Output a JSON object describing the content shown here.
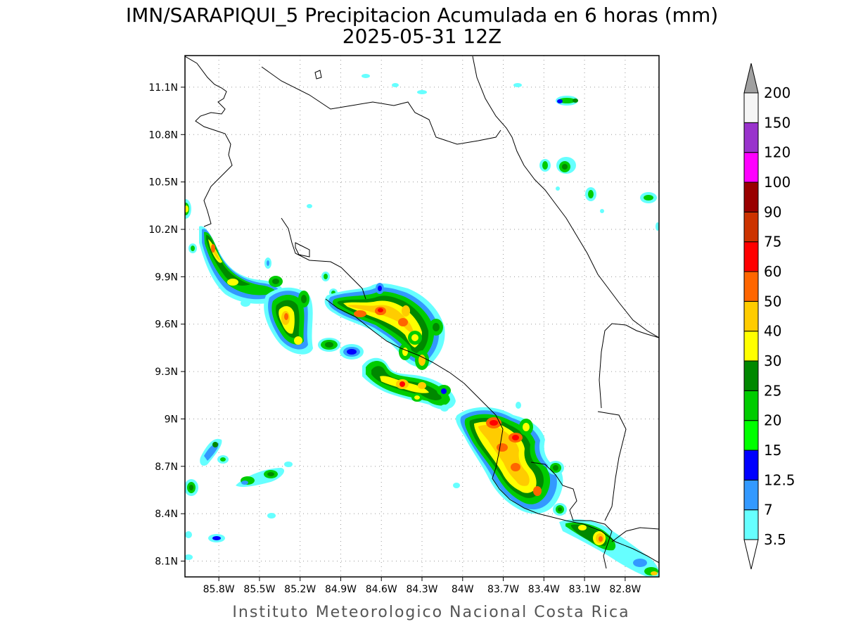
{
  "title": {
    "line1": "IMN/SARAPIQUI_5 Precipitacion Acumulada en 6 horas (mm)",
    "line2": "2025-05-31 12Z"
  },
  "footer": "Instituto Meteorologico Nacional Costa Rica",
  "map": {
    "lon_range": [
      -86.05,
      -82.55
    ],
    "lat_range": [
      8.0,
      11.3
    ],
    "lon_ticks": [
      {
        "v": -85.8,
        "label": "85.8W"
      },
      {
        "v": -85.5,
        "label": "85.5W"
      },
      {
        "v": -85.2,
        "label": "85.2W"
      },
      {
        "v": -84.9,
        "label": "84.9W"
      },
      {
        "v": -84.6,
        "label": "84.6W"
      },
      {
        "v": -84.3,
        "label": "84.3W"
      },
      {
        "v": -84.0,
        "label": "84W"
      },
      {
        "v": -83.7,
        "label": "83.7W"
      },
      {
        "v": -83.4,
        "label": "83.4W"
      },
      {
        "v": -83.1,
        "label": "83.1W"
      },
      {
        "v": -82.8,
        "label": "82.8W"
      }
    ],
    "lat_ticks": [
      {
        "v": 8.1,
        "label": "8.1N"
      },
      {
        "v": 8.4,
        "label": "8.4N"
      },
      {
        "v": 8.7,
        "label": "8.7N"
      },
      {
        "v": 9.0,
        "label": "9N"
      },
      {
        "v": 9.3,
        "label": "9.3N"
      },
      {
        "v": 9.6,
        "label": "9.6N"
      },
      {
        "v": 9.9,
        "label": "9.9N"
      },
      {
        "v": 10.2,
        "label": "10.2N"
      },
      {
        "v": 10.5,
        "label": "10.5N"
      },
      {
        "v": 10.8,
        "label": "10.8N"
      },
      {
        "v": 11.1,
        "label": "11.1N"
      }
    ],
    "gridlines": true
  },
  "colorbar": {
    "levels": [
      "3.5",
      "7",
      "12.5",
      "15",
      "20",
      "25",
      "30",
      "40",
      "50",
      "60",
      "75",
      "90",
      "100",
      "120",
      "150",
      "200"
    ],
    "colors": [
      "#66ffff",
      "#3399ff",
      "#0000ff",
      "#00ff00",
      "#00cc00",
      "#008800",
      "#ffff00",
      "#ffcc00",
      "#ff6600",
      "#ff0000",
      "#cc3300",
      "#990000",
      "#ff00ff",
      "#9933cc",
      "#f5f5f5",
      "#a0a0a0"
    ]
  }
}
